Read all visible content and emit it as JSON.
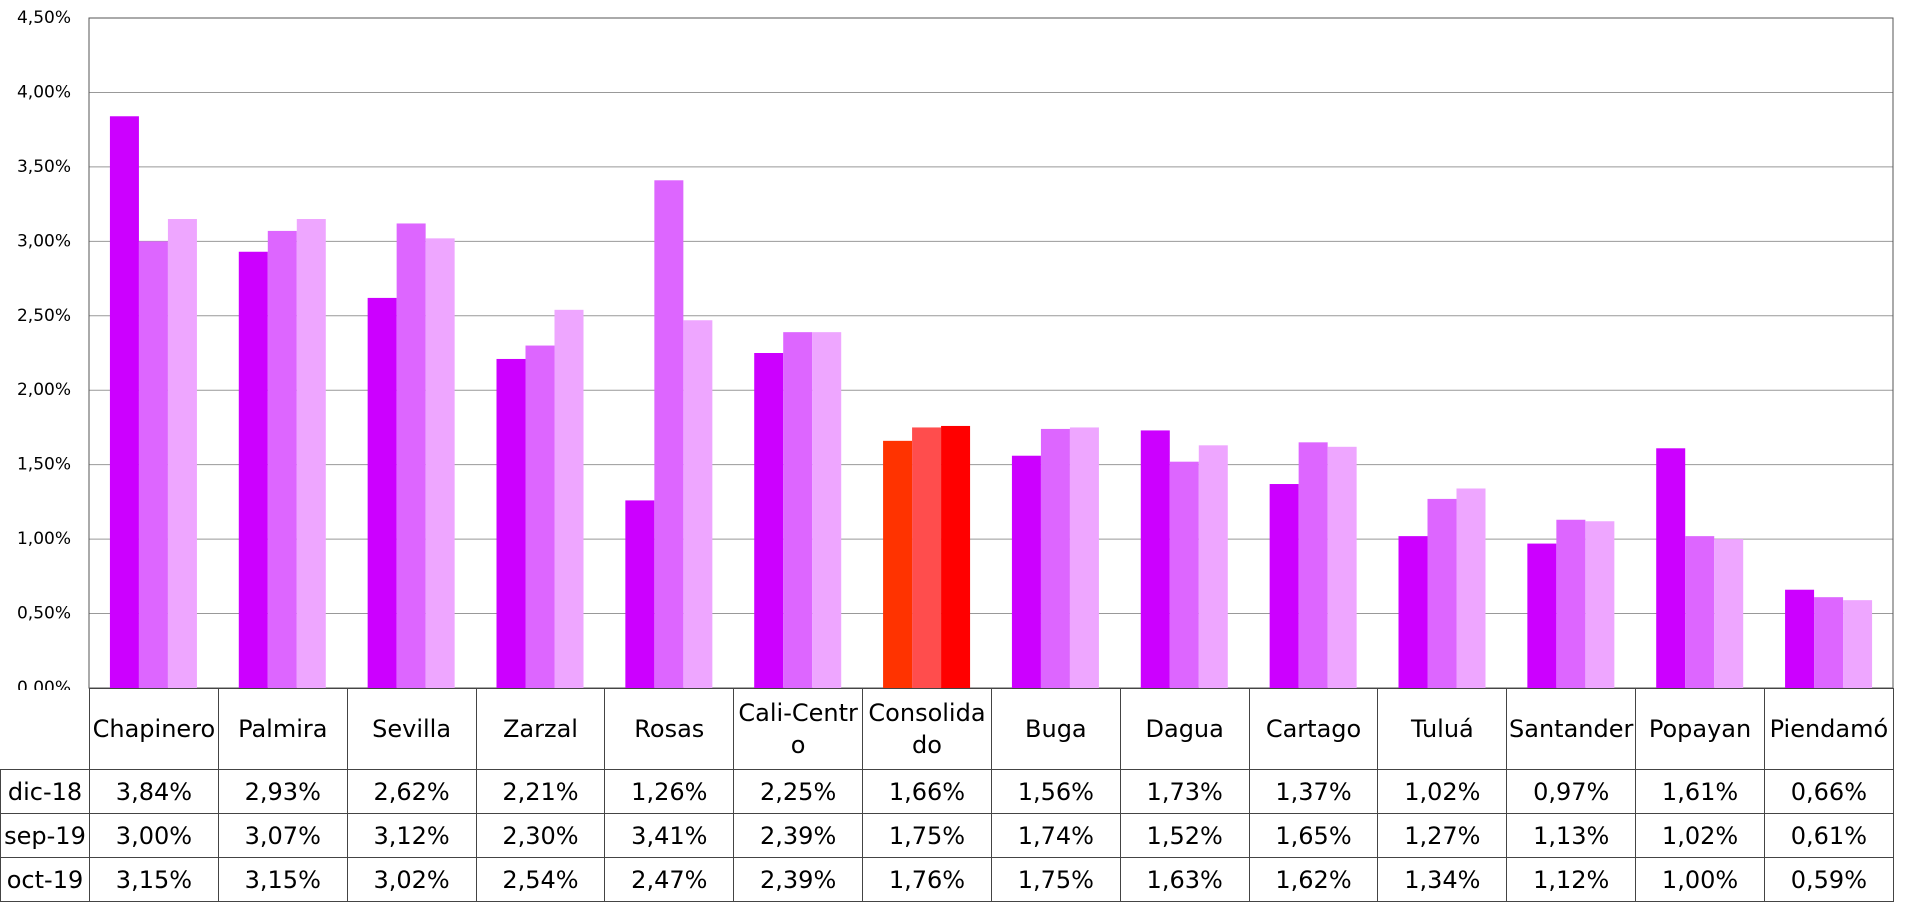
{
  "chart_data": {
    "type": "bar",
    "categories": [
      "Chapinero",
      "Palmira",
      "Sevilla",
      "Zarzal",
      "Rosas",
      "Cali-Centro",
      "Consolidado",
      "Buga",
      "Dagua",
      "Cartago",
      "Tuluá",
      "Santander",
      "Popayan",
      "Piendamó"
    ],
    "series": [
      {
        "name": "dic-18",
        "color": "#cc00ff",
        "colors": [
          "#cc00ff",
          "#cc00ff",
          "#cc00ff",
          "#cc00ff",
          "#cc00ff",
          "#cc00ff",
          "#ff3300",
          "#cc00ff",
          "#cc00ff",
          "#cc00ff",
          "#cc00ff",
          "#cc00ff",
          "#cc00ff",
          "#cc00ff"
        ],
        "values": [
          3.84,
          2.93,
          2.62,
          2.21,
          1.26,
          2.25,
          1.66,
          1.56,
          1.73,
          1.37,
          1.02,
          0.97,
          1.61,
          0.66
        ],
        "value_labels": [
          "3,84%",
          "2,93%",
          "2,62%",
          "2,21%",
          "1,26%",
          "2,25%",
          "1,66%",
          "1,56%",
          "1,73%",
          "1,37%",
          "1,02%",
          "0,97%",
          "1,61%",
          "0,66%"
        ]
      },
      {
        "name": "sep-19",
        "color": "#dd66ff",
        "colors": [
          "#dd66ff",
          "#dd66ff",
          "#dd66ff",
          "#dd66ff",
          "#dd66ff",
          "#dd66ff",
          "#ff4d4d",
          "#dd66ff",
          "#dd66ff",
          "#dd66ff",
          "#dd66ff",
          "#dd66ff",
          "#dd66ff",
          "#dd66ff"
        ],
        "values": [
          3.0,
          3.07,
          3.12,
          2.3,
          3.41,
          2.39,
          1.75,
          1.74,
          1.52,
          1.65,
          1.27,
          1.13,
          1.02,
          0.61
        ],
        "value_labels": [
          "3,00%",
          "3,07%",
          "3,12%",
          "2,30%",
          "3,41%",
          "2,39%",
          "1,75%",
          "1,74%",
          "1,52%",
          "1,65%",
          "1,27%",
          "1,13%",
          "1,02%",
          "0,61%"
        ]
      },
      {
        "name": "oct-19",
        "color": "#eea6ff",
        "colors": [
          "#eea6ff",
          "#eea6ff",
          "#eea6ff",
          "#eea6ff",
          "#eea6ff",
          "#eea6ff",
          "#ff0000",
          "#eea6ff",
          "#eea6ff",
          "#eea6ff",
          "#eea6ff",
          "#eea6ff",
          "#eea6ff",
          "#eea6ff"
        ],
        "values": [
          3.15,
          3.15,
          3.02,
          2.54,
          2.47,
          2.39,
          1.76,
          1.75,
          1.63,
          1.62,
          1.34,
          1.12,
          1.0,
          0.59
        ],
        "value_labels": [
          "3,15%",
          "3,15%",
          "3,02%",
          "2,54%",
          "2,47%",
          "2,39%",
          "1,76%",
          "1,75%",
          "1,63%",
          "1,62%",
          "1,34%",
          "1,12%",
          "1,00%",
          "0,59%"
        ]
      }
    ],
    "ylim": [
      0,
      4.5
    ],
    "yticks": [
      {
        "value": 0,
        "label": "0,00%"
      },
      {
        "value": 0.5,
        "label": "0,50%"
      },
      {
        "value": 1,
        "label": "1,00%"
      },
      {
        "value": 1.5,
        "label": "1,50%"
      },
      {
        "value": 2,
        "label": "2,00%"
      },
      {
        "value": 2.5,
        "label": "2,50%"
      },
      {
        "value": 3,
        "label": "3,00%"
      },
      {
        "value": 3.5,
        "label": "3,50%"
      },
      {
        "value": 4,
        "label": "4,00%"
      },
      {
        "value": 4.5,
        "label": "4,50%"
      }
    ],
    "grid": true
  }
}
